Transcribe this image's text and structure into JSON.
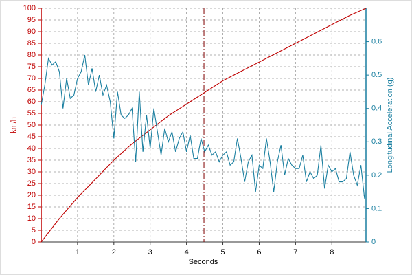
{
  "chart_data": {
    "type": "line",
    "xlabel": "Seconds",
    "ylabel": "km/h",
    "y2label": "Longitudinal Acceleration (g)",
    "xlim": [
      0,
      8.94
    ],
    "xticks": [
      1,
      2,
      3,
      4,
      5,
      6,
      7,
      8
    ],
    "ylim": [
      0,
      100
    ],
    "yticks": [
      0,
      5,
      10,
      15,
      20,
      25,
      30,
      35,
      40,
      45,
      50,
      55,
      60,
      65,
      70,
      75,
      80,
      85,
      90,
      95,
      100
    ],
    "y2lim": [
      0,
      0.7
    ],
    "y2ticks": [
      0,
      0.1,
      0.2,
      0.3,
      0.4,
      0.5,
      0.6
    ],
    "grid": true,
    "cursor_x": 4.48,
    "ycolor": "#c00000",
    "y2color": "#1a7fa0",
    "series": [
      {
        "color": "#c00000",
        "axis": "y",
        "x": [
          0,
          0.5,
          1,
          1.5,
          2,
          2.5,
          3,
          3.5,
          4,
          4.5,
          5,
          5.5,
          6,
          6.5,
          7,
          7.5,
          8,
          8.5,
          8.94
        ],
        "values": [
          0,
          10,
          19,
          27,
          35,
          42,
          48,
          54,
          59,
          64,
          69,
          73,
          77,
          81,
          85,
          89,
          93,
          97,
          100
        ]
      },
      {
        "color": "#1a7fa0",
        "axis": "y2",
        "x": [
          0,
          0.1,
          0.2,
          0.3,
          0.4,
          0.5,
          0.6,
          0.7,
          0.8,
          0.9,
          1,
          1.1,
          1.2,
          1.3,
          1.4,
          1.5,
          1.6,
          1.7,
          1.8,
          1.9,
          2,
          2.1,
          2.2,
          2.3,
          2.4,
          2.5,
          2.6,
          2.7,
          2.8,
          2.9,
          3,
          3.1,
          3.2,
          3.3,
          3.4,
          3.5,
          3.6,
          3.7,
          3.8,
          3.9,
          4,
          4.1,
          4.2,
          4.3,
          4.4,
          4.5,
          4.6,
          4.7,
          4.8,
          4.9,
          5,
          5.1,
          5.2,
          5.3,
          5.4,
          5.5,
          5.6,
          5.7,
          5.8,
          5.9,
          6,
          6.1,
          6.2,
          6.3,
          6.4,
          6.5,
          6.6,
          6.7,
          6.8,
          6.9,
          7,
          7.1,
          7.2,
          7.3,
          7.4,
          7.5,
          7.6,
          7.7,
          7.8,
          7.9,
          8,
          8.1,
          8.2,
          8.3,
          8.4,
          8.5,
          8.6,
          8.7,
          8.8,
          8.9
        ],
        "values": [
          0.41,
          0.47,
          0.55,
          0.53,
          0.54,
          0.51,
          0.4,
          0.49,
          0.43,
          0.44,
          0.49,
          0.51,
          0.56,
          0.47,
          0.52,
          0.45,
          0.5,
          0.44,
          0.47,
          0.42,
          0.31,
          0.45,
          0.38,
          0.37,
          0.38,
          0.4,
          0.24,
          0.45,
          0.27,
          0.38,
          0.28,
          0.4,
          0.33,
          0.26,
          0.34,
          0.3,
          0.33,
          0.27,
          0.31,
          0.33,
          0.27,
          0.32,
          0.25,
          0.25,
          0.31,
          0.27,
          0.29,
          0.26,
          0.27,
          0.24,
          0.26,
          0.27,
          0.23,
          0.24,
          0.31,
          0.25,
          0.18,
          0.24,
          0.26,
          0.15,
          0.23,
          0.22,
          0.31,
          0.24,
          0.15,
          0.24,
          0.29,
          0.2,
          0.25,
          0.23,
          0.22,
          0.22,
          0.26,
          0.18,
          0.21,
          0.19,
          0.2,
          0.29,
          0.16,
          0.23,
          0.21,
          0.22,
          0.18,
          0.18,
          0.19,
          0.27,
          0.2,
          0.17,
          0.23,
          0.13
        ]
      }
    ]
  }
}
